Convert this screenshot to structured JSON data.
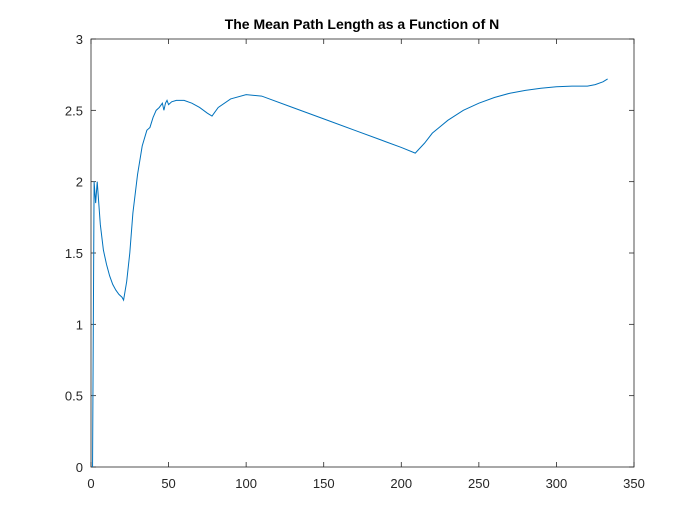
{
  "chart_data": {
    "type": "line",
    "title": "The Mean Path Length as a Function of N",
    "xlabel": "",
    "ylabel": "",
    "xlim": [
      0,
      350
    ],
    "ylim": [
      0,
      3
    ],
    "xticks": [
      0,
      50,
      100,
      150,
      200,
      250,
      300,
      350
    ],
    "yticks": [
      0,
      0.5,
      1,
      1.5,
      2,
      2.5,
      3
    ],
    "grid": false,
    "line_color": "#0072BD",
    "series": [
      {
        "name": "",
        "x": [
          1,
          2,
          3,
          4,
          5,
          6,
          8,
          10,
          12,
          14,
          16,
          18,
          20,
          21,
          23,
          25,
          27,
          30,
          33,
          36,
          38,
          40,
          42,
          44,
          46,
          47,
          48,
          49,
          50,
          52,
          55,
          60,
          65,
          70,
          75,
          78,
          82,
          90,
          100,
          110,
          130,
          150,
          170,
          190,
          200,
          209,
          215,
          220,
          230,
          240,
          250,
          260,
          270,
          280,
          290,
          300,
          310,
          320,
          325,
          330,
          333
        ],
        "y": [
          0,
          2.0,
          1.85,
          2.0,
          1.85,
          1.7,
          1.52,
          1.42,
          1.34,
          1.28,
          1.24,
          1.21,
          1.19,
          1.17,
          1.3,
          1.5,
          1.78,
          2.05,
          2.25,
          2.36,
          2.38,
          2.45,
          2.5,
          2.52,
          2.55,
          2.5,
          2.55,
          2.57,
          2.54,
          2.56,
          2.57,
          2.57,
          2.55,
          2.52,
          2.48,
          2.46,
          2.52,
          2.58,
          2.61,
          2.6,
          2.52,
          2.44,
          2.36,
          2.28,
          2.24,
          2.2,
          2.27,
          2.34,
          2.43,
          2.5,
          2.55,
          2.59,
          2.62,
          2.64,
          2.655,
          2.665,
          2.67,
          2.67,
          2.68,
          2.7,
          2.72
        ]
      }
    ]
  }
}
